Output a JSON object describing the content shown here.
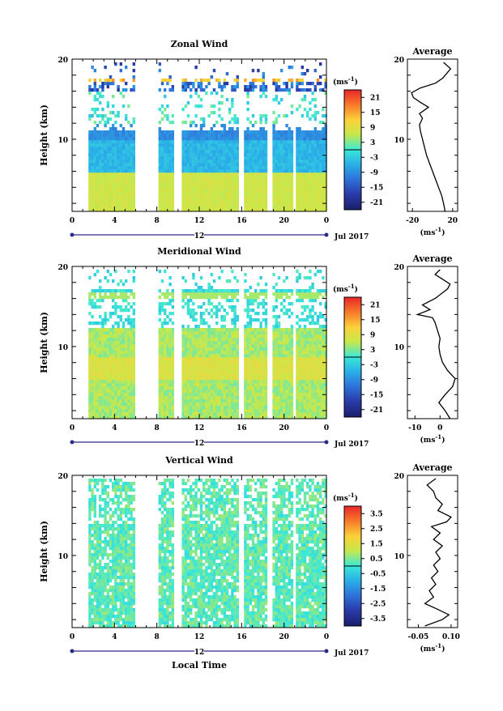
{
  "chart_data": [
    {
      "type": "heatmap",
      "title": "Zonal Wind",
      "ylabel": "Height (km)",
      "y_ticks": [
        "20",
        "10"
      ],
      "x_ticks": [
        "0",
        "4",
        "8",
        "12",
        "16",
        "20",
        "0"
      ],
      "date_marker": "12",
      "month_label": "Jul 2017",
      "colorbar": {
        "unit": "(ms",
        "unit_exp": "-1",
        "unit_close": ")",
        "labels": [
          "21",
          "15",
          "9",
          "3",
          "-3",
          "-9",
          "-15",
          "-21"
        ],
        "range": [
          -24,
          24
        ]
      },
      "average": {
        "title": "Average",
        "y_ticks": [
          "20",
          "10"
        ],
        "x_ticks": [
          "-20",
          "20"
        ],
        "xlim": [
          -25,
          25
        ],
        "ylim": [
          1,
          20
        ],
        "unit": "(ms",
        "unit_exp": "-1",
        "unit_close": ")",
        "profile": [
          [
            12.5,
            1
          ],
          [
            11,
            2
          ],
          [
            9,
            3
          ],
          [
            6,
            4
          ],
          [
            3,
            5
          ],
          [
            0,
            6
          ],
          [
            -3,
            7
          ],
          [
            -6,
            8
          ],
          [
            -8,
            9
          ],
          [
            -10,
            10
          ],
          [
            -12,
            11
          ],
          [
            -13,
            11.8
          ],
          [
            -10,
            12.6
          ],
          [
            -13,
            13.2
          ],
          [
            -4,
            14
          ],
          [
            -12,
            14.6
          ],
          [
            -19,
            15.2
          ],
          [
            -21,
            15.8
          ],
          [
            -12,
            16.4
          ],
          [
            3,
            17
          ],
          [
            10,
            17.6
          ],
          [
            14,
            18.2
          ],
          [
            18,
            18.8
          ],
          [
            11,
            19.6
          ]
        ]
      }
    },
    {
      "type": "heatmap",
      "title": "Meridional Wind",
      "ylabel": "Height (km)",
      "y_ticks": [
        "20",
        "10"
      ],
      "x_ticks": [
        "0",
        "4",
        "8",
        "12",
        "16",
        "20",
        "0"
      ],
      "date_marker": "12",
      "month_label": "Jul 2017",
      "colorbar": {
        "unit": "(ms",
        "unit_exp": "-1",
        "unit_close": ")",
        "labels": [
          "21",
          "15",
          "9",
          "3",
          "-3",
          "-9",
          "-15",
          "-21"
        ],
        "range": [
          -24,
          24
        ]
      },
      "average": {
        "title": "Average",
        "y_ticks": [
          "20",
          "10"
        ],
        "x_ticks": [
          "-10",
          "0"
        ],
        "xlim": [
          -13,
          7
        ],
        "ylim": [
          1,
          20
        ],
        "unit": "(ms",
        "unit_exp": "-1",
        "unit_close": ")",
        "profile": [
          [
            4,
            1
          ],
          [
            2,
            2
          ],
          [
            -0.5,
            3
          ],
          [
            2,
            4
          ],
          [
            5,
            5
          ],
          [
            6,
            6
          ],
          [
            3,
            7
          ],
          [
            1,
            8
          ],
          [
            0,
            9
          ],
          [
            -0.5,
            10
          ],
          [
            0,
            11
          ],
          [
            -1,
            12
          ],
          [
            -2,
            13
          ],
          [
            -3,
            13.6
          ],
          [
            -9,
            14
          ],
          [
            -4,
            14.6
          ],
          [
            -7,
            15.2
          ],
          [
            -2,
            16
          ],
          [
            0.5,
            16.6
          ],
          [
            3,
            17.2
          ],
          [
            4,
            17.8
          ],
          [
            1,
            18.4
          ],
          [
            -2,
            19
          ],
          [
            0,
            19.6
          ]
        ]
      }
    },
    {
      "type": "heatmap",
      "title": "Vertical Wind",
      "ylabel": "Height (km)",
      "xlabel": "Local Time",
      "y_ticks": [
        "20",
        "10"
      ],
      "x_ticks": [
        "0",
        "4",
        "8",
        "12",
        "16",
        "20",
        "0"
      ],
      "date_marker": "12",
      "month_label": "Jul 2017",
      "colorbar": {
        "unit": "(ms",
        "unit_exp": "-1",
        "unit_close": ")",
        "labels": [
          "3.5",
          "2.5",
          "1.5",
          "0.5",
          "-0.5",
          "-1.5",
          "-2.5",
          "-3.5"
        ],
        "range": [
          -4,
          4
        ]
      },
      "average": {
        "title": "Average",
        "y_ticks": [
          "20",
          "10"
        ],
        "x_ticks": [
          "-0.05",
          "0.10"
        ],
        "xlim": [
          -0.1,
          0.13
        ],
        "ylim": [
          1,
          20
        ],
        "unit": "(ms",
        "unit_exp": "-1",
        "unit_close": ")",
        "profile": [
          [
            -0.02,
            1.2
          ],
          [
            0.06,
            2
          ],
          [
            0.09,
            2.6
          ],
          [
            0.03,
            3.4
          ],
          [
            -0.02,
            4
          ],
          [
            0.02,
            4.8
          ],
          [
            0.0,
            5.6
          ],
          [
            0.03,
            6.4
          ],
          [
            0.01,
            7.2
          ],
          [
            0.04,
            8
          ],
          [
            0.02,
            8.8
          ],
          [
            0.05,
            9.6
          ],
          [
            0.03,
            10.4
          ],
          [
            0.06,
            11.2
          ],
          [
            0.02,
            12
          ],
          [
            0.05,
            12.8
          ],
          [
            0.01,
            13.6
          ],
          [
            0.08,
            14.2
          ],
          [
            0.1,
            14.8
          ],
          [
            0.04,
            15.6
          ],
          [
            0.06,
            16.4
          ],
          [
            0.03,
            17.2
          ],
          [
            0.02,
            18
          ],
          [
            -0.01,
            18.8
          ],
          [
            0.03,
            19.6
          ]
        ]
      }
    }
  ]
}
